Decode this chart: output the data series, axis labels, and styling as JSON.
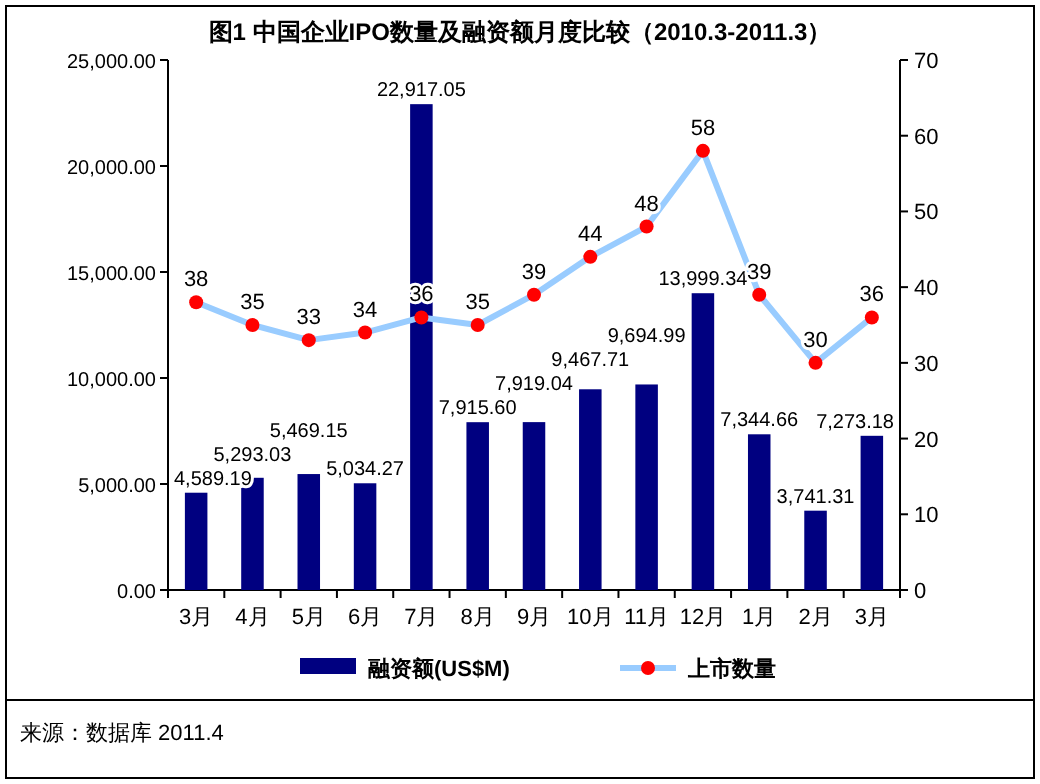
{
  "chart_data": {
    "type": "bar",
    "title": "图1  中国企业IPO数量及融资额月度比较（2010.3-2011.3）",
    "categories": [
      "3月",
      "4月",
      "5月",
      "6月",
      "7月",
      "8月",
      "9月",
      "10月",
      "11月",
      "12月",
      "1月",
      "2月",
      "3月"
    ],
    "series": [
      {
        "name": "融资额(US$M)",
        "color": "#000080",
        "values": [
          4589.19,
          5293.03,
          5469.15,
          5034.27,
          22917.05,
          7915.6,
          7919.04,
          9467.71,
          9694.99,
          13999.34,
          7344.66,
          3741.31,
          7273.18
        ],
        "value_labels": [
          "4,589.19",
          "5,293.03",
          "5,469.15",
          "5,034.27",
          "22,917.05",
          "7,915.60",
          "7,919.04",
          "9,467.71",
          "9,694.99",
          "13,999.34",
          "7,344.66",
          "3,741.31",
          "7,273.18"
        ]
      },
      {
        "name": "上市数量",
        "type": "line",
        "axis": "y2",
        "color": "#99ccff",
        "marker": "circle",
        "values": [
          38,
          35,
          33,
          34,
          36,
          35,
          39,
          44,
          48,
          58,
          39,
          30,
          36
        ],
        "value_labels": [
          "38",
          "35",
          "33",
          "34",
          "36",
          "35",
          "39",
          "44",
          "48",
          "58",
          "39",
          "30",
          "36"
        ]
      }
    ],
    "ylim": [
      0,
      25000
    ],
    "yticks": [
      {
        "value": 0,
        "label": "0.00"
      },
      {
        "value": 5000,
        "label": "5,000.00"
      },
      {
        "value": 10000,
        "label": "10,000.00"
      },
      {
        "value": 15000,
        "label": "15,000.00"
      },
      {
        "value": 20000,
        "label": "20,000.00"
      },
      {
        "value": 25000,
        "label": "25,000.00"
      }
    ],
    "y2lim": [
      0,
      70
    ],
    "y2ticks": [
      0,
      10,
      20,
      30,
      40,
      50,
      60,
      70
    ],
    "legend": "bottom",
    "annotations": [
      "来源：数据库 2011.4"
    ]
  }
}
